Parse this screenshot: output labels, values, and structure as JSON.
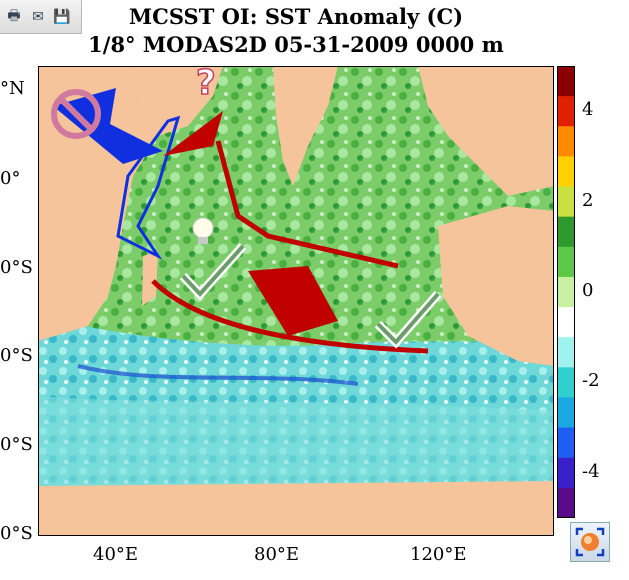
{
  "toolbar": {
    "buttons": [
      {
        "name": "print-button",
        "icon": "printer-icon",
        "glyph": "🖶"
      },
      {
        "name": "email-button",
        "icon": "envelope-icon",
        "glyph": "✉"
      },
      {
        "name": "save-button",
        "icon": "floppy-disk-icon",
        "glyph": "💾"
      }
    ]
  },
  "chart_data": {
    "type": "heatmap",
    "title": "MCSST OI:  SST Anomaly (C)",
    "subtitle": "1/8° MODAS2D 05-31-2009 0000 m",
    "x_tick_labels": [
      "40°E",
      "80°E",
      "120°E"
    ],
    "x_tick_values": [
      40,
      80,
      120
    ],
    "y_tick_labels": [
      "°N",
      "0°",
      "0°S",
      "0°S",
      "0°S",
      "0°S"
    ],
    "colorbar": {
      "min": -5,
      "max": 5,
      "tick_values": [
        4,
        2,
        0,
        -2,
        -4
      ],
      "tick_labels": [
        "4",
        "2",
        "0",
        "-2",
        "-4"
      ],
      "colors": [
        "#5a0b8a",
        "#3a20c8",
        "#1f5ef0",
        "#1aa8e0",
        "#30d0d0",
        "#9ff2ee",
        "#ffffff",
        "#c8f0a0",
        "#5cc84a",
        "#2e9a2e",
        "#c8e040",
        "#ffd000",
        "#ff8a00",
        "#e02000",
        "#8a0000"
      ]
    },
    "annotations": [
      {
        "type": "prohibited-sign",
        "color": "#d07aa0"
      },
      {
        "type": "question-mark",
        "text": "?"
      },
      {
        "type": "lightbulb"
      },
      {
        "type": "checkmark"
      },
      {
        "type": "checkmark"
      }
    ],
    "arrow_colors": {
      "red": "#c00000",
      "blue": "#1030e0"
    },
    "map_colors": {
      "land": "#f5c49a",
      "ocean_base": "#88d878"
    }
  },
  "corner_button": {
    "icon": "zoom-expand-icon"
  }
}
